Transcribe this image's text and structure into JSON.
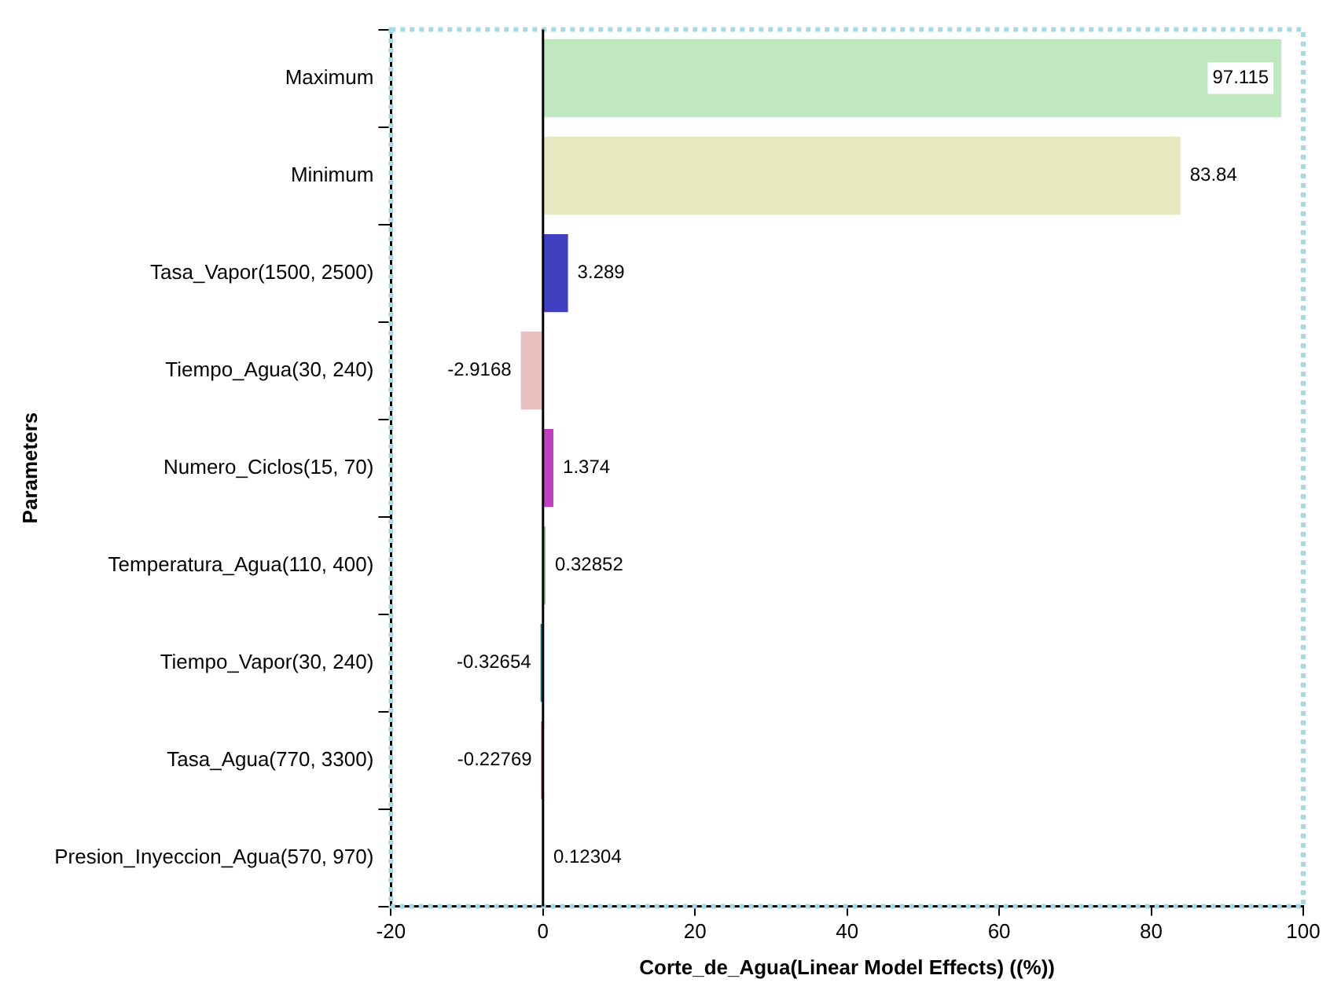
{
  "chart_data": {
    "type": "bar",
    "orientation": "horizontal",
    "xlabel": "Corte_de_Agua(Linear Model Effects) ((%))",
    "ylabel": "Parameters",
    "categories": [
      "Maximum",
      "Minimum",
      "Tasa_Vapor(1500, 2500)",
      "Tiempo_Agua(30, 240)",
      "Numero_Ciclos(15, 70)",
      "Temperatura_Agua(110, 400)",
      "Tiempo_Vapor(30, 240)",
      "Tasa_Agua(770, 3300)",
      "Presion_Inyeccion_Agua(570, 970)"
    ],
    "values": [
      97.115,
      83.84,
      3.289,
      -2.9168,
      1.374,
      0.32852,
      -0.32654,
      -0.22769,
      0.12304
    ],
    "colors": [
      "#c0e8c0",
      "#e8e8c0",
      "#4040c0",
      "#e8c0c0",
      "#c040c0",
      "#80d080",
      "#207878",
      "#802030",
      "#d0d080"
    ],
    "xlim": [
      -20,
      100
    ],
    "xticks": [
      -20,
      0,
      20,
      40,
      60,
      80,
      100
    ],
    "ref_lines": [
      {
        "axis": "x",
        "value": 0,
        "color": "#000000"
      }
    ],
    "data_labels": true,
    "grid": false,
    "legend": false
  }
}
